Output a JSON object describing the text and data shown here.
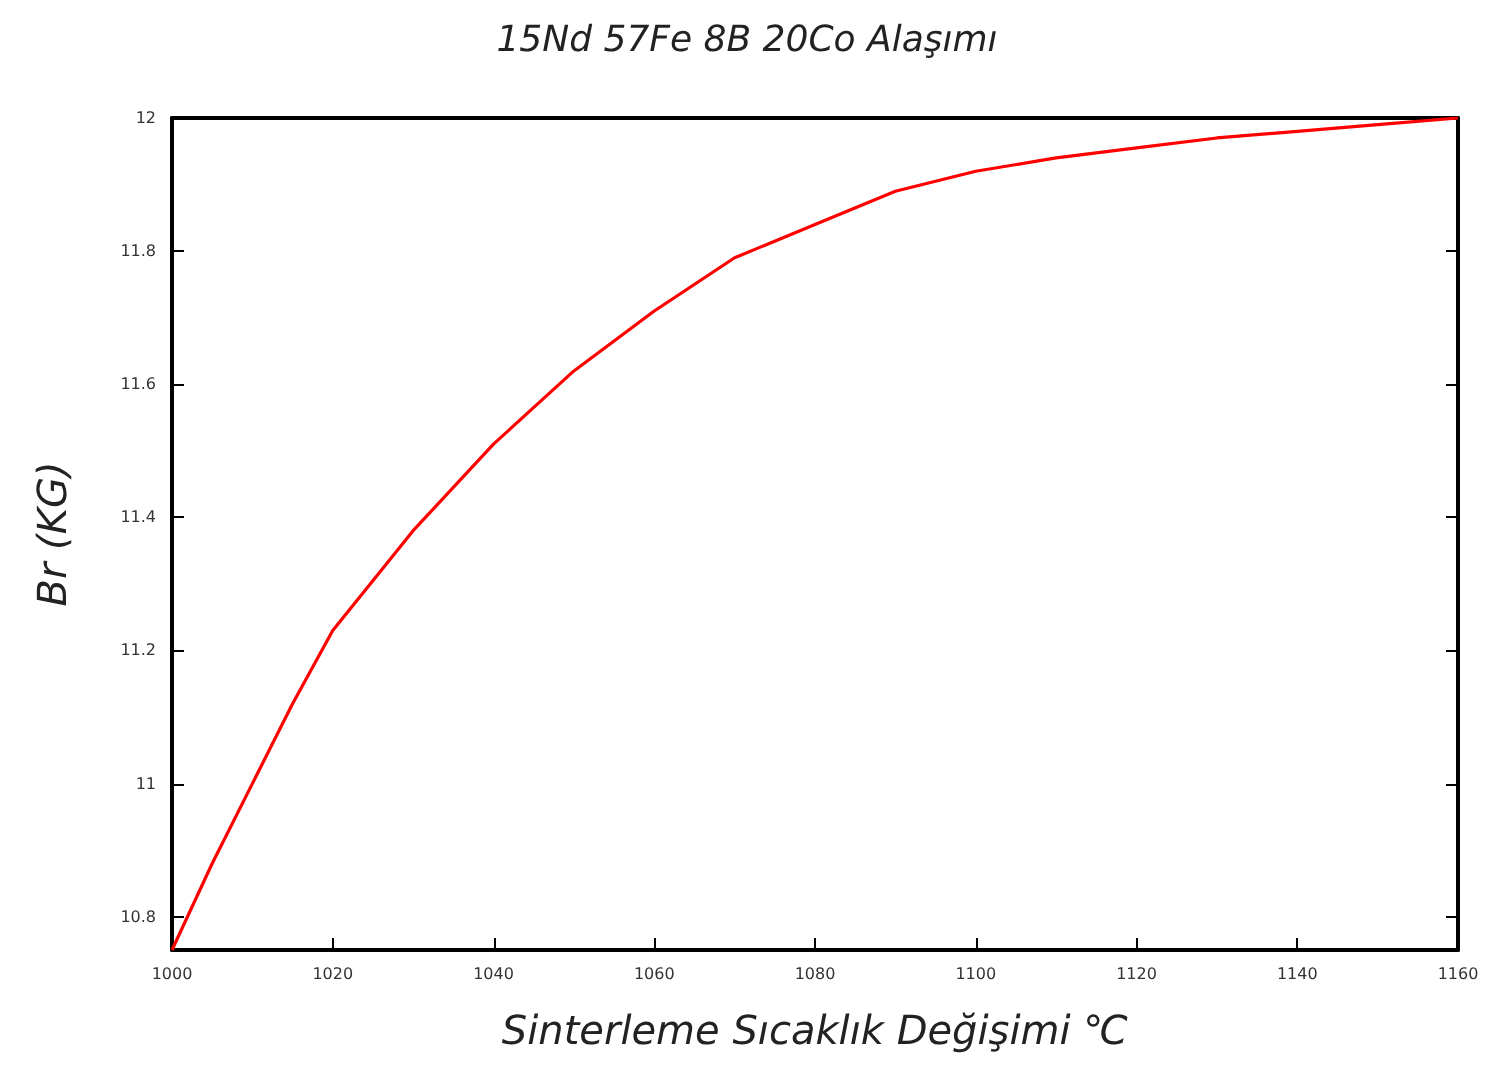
{
  "chart_data": {
    "type": "line",
    "title": "15Nd 57Fe 8B 20Co Alaşımı",
    "xlabel": "Sinterleme Sıcaklık Değişimi ℃",
    "ylabel": "Br (KG)",
    "x": [
      1000,
      1005,
      1010,
      1015,
      1020,
      1030,
      1040,
      1050,
      1060,
      1070,
      1080,
      1090,
      1100,
      1110,
      1120,
      1130,
      1140,
      1150,
      1160
    ],
    "series": [
      {
        "color": "#ff0000",
        "values": [
          10.75,
          10.88,
          11.0,
          11.12,
          11.23,
          11.38,
          11.51,
          11.62,
          11.71,
          11.79,
          11.84,
          11.89,
          11.92,
          11.94,
          11.955,
          11.97,
          11.98,
          11.99,
          12.0
        ]
      }
    ],
    "xlim": [
      1000,
      1160
    ],
    "xticks": [
      1000,
      1020,
      1040,
      1060,
      1080,
      1100,
      1120,
      1140,
      1160
    ],
    "ylim": [
      10.75,
      12
    ],
    "yticks": [
      10.8,
      11,
      11.2,
      11.4,
      11.6,
      11.8,
      12
    ],
    "grid": false,
    "marker": "none",
    "line_style": "solid"
  }
}
